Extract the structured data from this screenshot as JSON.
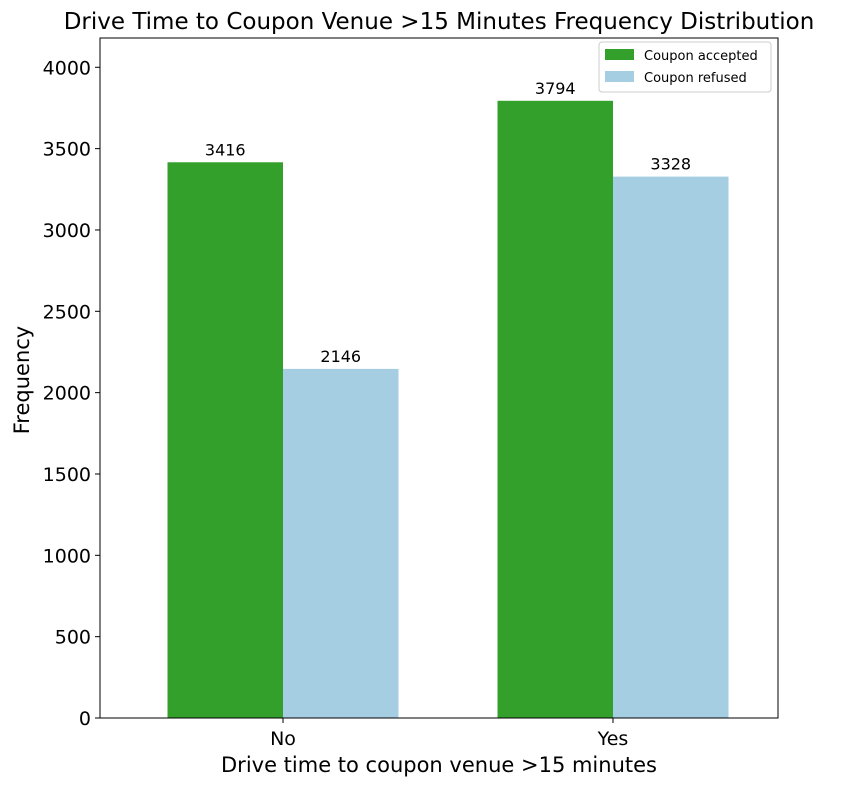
{
  "chart_data": {
    "type": "bar",
    "title": "Drive Time to Coupon Venue >15 Minutes Frequency Distribution",
    "xlabel": "Drive time to coupon venue >15 minutes",
    "ylabel": "Frequency",
    "categories": [
      "No",
      "Yes"
    ],
    "series": [
      {
        "name": "Coupon accepted",
        "values": [
          3416,
          3794
        ],
        "color": "#33a02c"
      },
      {
        "name": "Coupon refused",
        "values": [
          2146,
          3328
        ],
        "color": "#a6cee3"
      }
    ],
    "ylim": [
      0,
      4180
    ],
    "yticks": [
      0,
      500,
      1000,
      1500,
      2000,
      2500,
      3000,
      3500,
      4000
    ],
    "legend_position": "top-right",
    "grid": false
  }
}
